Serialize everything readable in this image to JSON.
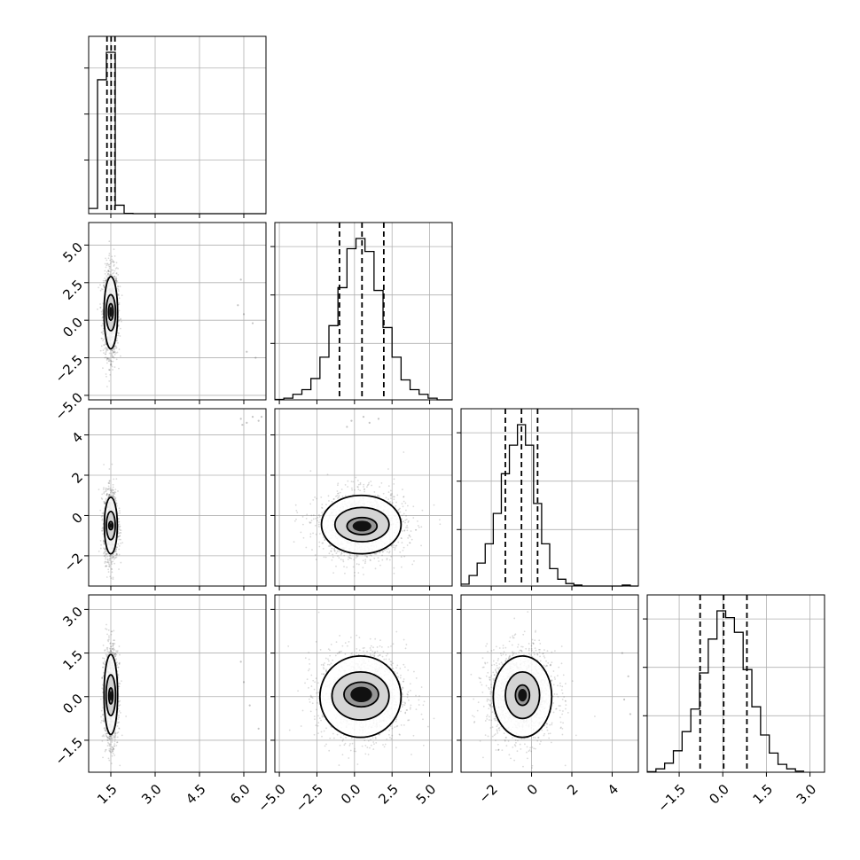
{
  "chart_data": {
    "type": "corner",
    "title": "",
    "n_params": 4,
    "param_labels": [
      "",
      "",
      "",
      ""
    ],
    "colors": {
      "line": "#000000",
      "grid": "#b0b0b0",
      "scatter": "#555555"
    },
    "grid": true,
    "axes": [
      {
        "range": [
          0.75,
          6.75
        ],
        "ticks": [
          1.5,
          3.0,
          4.5,
          6.0
        ],
        "tick_labels": [
          "1.5",
          "3.0",
          "4.5",
          "6.0"
        ]
      },
      {
        "range": [
          -5.3,
          6.5
        ],
        "ticks": [
          -5.0,
          -2.5,
          0.0,
          2.5,
          5.0
        ],
        "tick_labels": [
          "−5.0",
          "−2.5",
          "0.0",
          "2.5",
          "5.0"
        ]
      },
      {
        "range": [
          -3.5,
          5.3
        ],
        "ticks": [
          -2,
          0,
          2,
          4
        ],
        "tick_labels": [
          "−2",
          "0",
          "2",
          "4"
        ]
      },
      {
        "range": [
          -2.6,
          3.5
        ],
        "ticks": [
          -1.5,
          0.0,
          1.5,
          3.0
        ],
        "tick_labels": [
          "−1.5",
          "0.0",
          "1.5",
          "3.0"
        ]
      }
    ],
    "histograms": [
      {
        "param": 0,
        "edges": [
          0.75,
          1.05,
          1.35,
          1.65,
          1.95,
          2.25,
          6.75
        ],
        "counts": [
          80,
          2050,
          2470,
          130,
          5,
          0
        ],
        "quantiles": [
          1.37,
          1.51,
          1.64
        ]
      },
      {
        "param": 1,
        "edges": [
          -5.3,
          -4.7,
          -4.1,
          -3.5,
          -2.9,
          -2.3,
          -1.7,
          -1.1,
          -0.5,
          0.1,
          0.7,
          1.3,
          1.9,
          2.5,
          3.1,
          3.7,
          4.3,
          4.9,
          5.5,
          6.5
        ],
        "counts": [
          5,
          18,
          60,
          110,
          230,
          460,
          800,
          1210,
          1630,
          1740,
          1600,
          1180,
          780,
          460,
          215,
          110,
          60,
          18,
          0
        ],
        "quantiles": [
          -1.0,
          0.5,
          1.95
        ]
      },
      {
        "param": 2,
        "edges": [
          -3.5,
          -3.1,
          -2.7,
          -2.3,
          -1.9,
          -1.5,
          -1.1,
          -0.7,
          -0.3,
          0.1,
          0.5,
          0.9,
          1.3,
          1.7,
          2.1,
          2.5,
          4.5,
          4.9,
          5.3
        ],
        "counts": [
          30,
          170,
          370,
          680,
          1170,
          1810,
          2270,
          2600,
          2270,
          1330,
          680,
          280,
          110,
          40,
          15,
          0,
          15,
          0
        ],
        "quantiles": [
          -1.3,
          -0.5,
          0.3
        ]
      },
      {
        "param": 3,
        "edges": [
          -2.6,
          -2.3,
          -2.0,
          -1.7,
          -1.4,
          -1.1,
          -0.8,
          -0.5,
          -0.2,
          0.1,
          0.4,
          0.7,
          1.0,
          1.3,
          1.6,
          1.9,
          2.2,
          2.5,
          2.8
        ],
        "counts": [
          5,
          30,
          80,
          190,
          360,
          560,
          880,
          1180,
          1430,
          1370,
          1240,
          910,
          580,
          330,
          170,
          70,
          30,
          10
        ],
        "quantiles": [
          -0.78,
          0.03,
          0.83
        ]
      }
    ],
    "pairs": [
      {
        "x": 0,
        "y": 1,
        "center": [
          1.5,
          0.5
        ],
        "sigma": [
          0.12,
          1.45
        ],
        "contours": [
          [
            1.27,
            1.73,
            -1.9,
            2.9
          ],
          [
            1.34,
            1.66,
            -0.7,
            1.7
          ],
          [
            1.42,
            1.58,
            0.0,
            1.1
          ]
        ],
        "sparse_points": [
          [
            5.9,
            2.7
          ],
          [
            6.0,
            0.4
          ],
          [
            6.3,
            -0.2
          ],
          [
            6.1,
            -2.1
          ],
          [
            6.4,
            -2.5
          ],
          [
            5.8,
            1.0
          ]
        ]
      },
      {
        "x": 0,
        "y": 2,
        "center": [
          1.5,
          -0.5
        ],
        "sigma": [
          0.12,
          0.85
        ],
        "contours": [
          [
            1.28,
            1.72,
            -1.9,
            0.9
          ],
          [
            1.35,
            1.65,
            -1.2,
            0.2
          ],
          [
            1.43,
            1.57,
            -0.7,
            -0.3
          ]
        ],
        "sparse_points": [
          [
            5.9,
            4.8
          ],
          [
            6.1,
            4.6
          ],
          [
            6.3,
            4.9
          ],
          [
            6.5,
            4.7
          ],
          [
            6.6,
            4.9
          ],
          [
            5.95,
            4.5
          ]
        ]
      },
      {
        "x": 0,
        "y": 3,
        "center": [
          1.5,
          0.05
        ],
        "sigma": [
          0.12,
          0.8
        ],
        "contours": [
          [
            1.27,
            1.73,
            -1.3,
            1.45
          ],
          [
            1.34,
            1.66,
            -0.65,
            0.75
          ],
          [
            1.43,
            1.57,
            -0.25,
            0.3
          ]
        ],
        "sparse_points": [
          [
            5.9,
            1.2
          ],
          [
            6.2,
            -0.3
          ],
          [
            6.5,
            -1.1
          ],
          [
            6.0,
            0.5
          ]
        ]
      },
      {
        "x": 1,
        "y": 2,
        "center": [
          0.5,
          -0.5
        ],
        "sigma": [
          1.45,
          0.85
        ],
        "contours": [
          [
            -2.2,
            3.1,
            -1.9,
            1.0
          ],
          [
            -1.3,
            2.3,
            -1.3,
            0.4
          ],
          [
            -0.5,
            1.5,
            -0.95,
            -0.1
          ]
        ],
        "sparse_points": [
          [
            -0.2,
            4.7
          ],
          [
            0.6,
            4.9
          ],
          [
            1.0,
            4.6
          ],
          [
            -0.5,
            4.4
          ],
          [
            1.6,
            4.8
          ]
        ]
      },
      {
        "x": 1,
        "y": 3,
        "center": [
          0.5,
          0.05
        ],
        "sigma": [
          1.45,
          0.8
        ],
        "contours": [
          [
            -2.3,
            3.1,
            -1.4,
            1.4
          ],
          [
            -1.5,
            2.3,
            -0.8,
            0.85
          ],
          [
            -0.7,
            1.6,
            -0.35,
            0.5
          ]
        ],
        "sparse_points": []
      },
      {
        "x": 2,
        "y": 3,
        "center": [
          -0.5,
          0.05
        ],
        "sigma": [
          0.85,
          0.8
        ],
        "contours": [
          [
            -1.9,
            1.0,
            -1.4,
            1.4
          ],
          [
            -1.3,
            0.4,
            -0.75,
            0.85
          ],
          [
            -0.8,
            -0.1,
            -0.3,
            0.4
          ]
        ],
        "sparse_points": [
          [
            4.5,
            1.5
          ],
          [
            4.8,
            0.7
          ],
          [
            4.6,
            -0.1
          ],
          [
            4.9,
            -0.6
          ]
        ]
      }
    ]
  }
}
